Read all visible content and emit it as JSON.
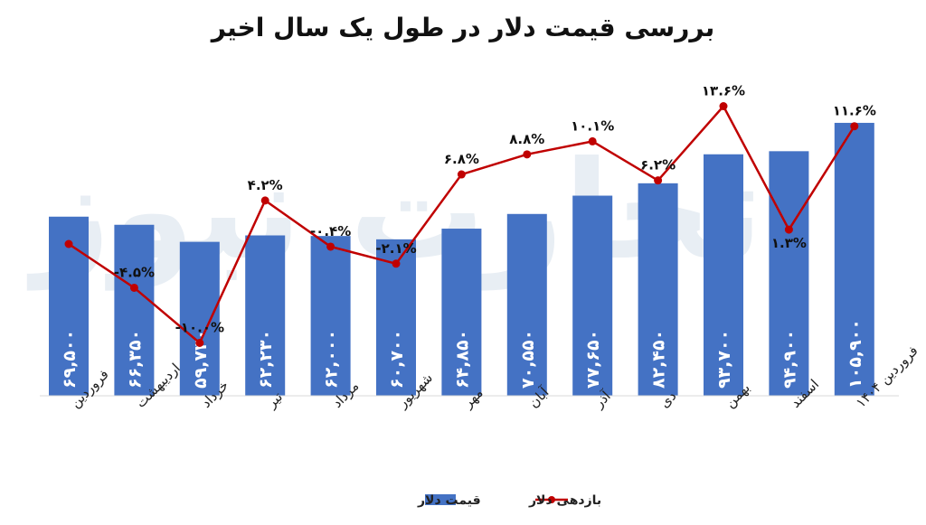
{
  "chart_data": {
    "type": "bar",
    "title": "بررسی قیمت دلار در طول یک سال اخیر",
    "watermark": "تجارت نیوز",
    "categories": [
      "فروردین",
      "اردیبهشت",
      "خرداد",
      "تیر",
      "مرداد",
      "شهریور",
      "مهر",
      "آبان",
      "آذر",
      "دی",
      "بهمن",
      "اسفند",
      "فروردین ۱۴۰۴"
    ],
    "series": [
      {
        "name": "قیمت دلار",
        "kind": "bar",
        "color": "#4472C4",
        "values": [
          69500,
          66350,
          59730,
          62230,
          62000,
          60700,
          64850,
          70550,
          77650,
          82450,
          93700,
          94900,
          105900
        ],
        "labels": [
          "۶۹,۵۰۰",
          "۶۶,۳۵۰",
          "۵۹,۷۳۰",
          "۶۲,۲۳۰",
          "۶۲,۰۰۰",
          "۶۰,۷۰۰",
          "۶۴,۸۵۰",
          "۷۰,۵۵۰",
          "۷۷,۶۵۰",
          "۸۲,۴۵۰",
          "۹۳,۷۰۰",
          "۹۴,۹۰۰",
          "۱۰۵,۹۰۰"
        ]
      },
      {
        "name": "بازدهی دلار",
        "kind": "line",
        "color": "#C00000",
        "values": [
          null,
          -4.5,
          -10.0,
          4.2,
          -0.4,
          -2.1,
          6.8,
          8.8,
          10.1,
          6.2,
          13.6,
          1.3,
          11.6
        ],
        "labels": [
          "",
          "-۴.۵%",
          "-۱۰.۰%",
          "۴.۲%",
          "-۰.۴%",
          "-۲.۱%",
          "۶.۸%",
          "۸.۸%",
          "۱۰.۱%",
          "۶.۲%",
          "۱۳.۶%",
          "۱.۳%",
          "۱۱.۶%"
        ]
      }
    ],
    "legend_position": "bottom",
    "grid": false
  }
}
